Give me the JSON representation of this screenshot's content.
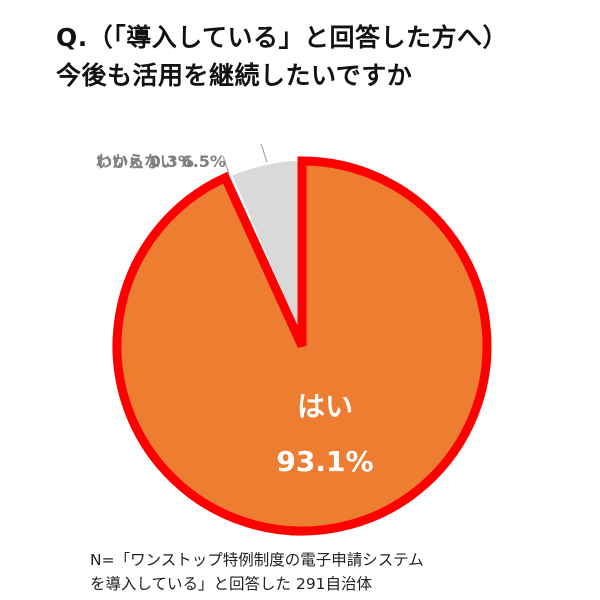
{
  "title": {
    "line1": "Q.（「導入している」と回答した方へ）",
    "line2": "今後も活用を継続したいですか"
  },
  "chart_data": {
    "type": "pie",
    "slices": [
      {
        "label": "はい",
        "value": 93.1,
        "value_label": "93.1%",
        "color": "#ed7d31",
        "highlighted": true,
        "highlight_color": "#ff0000"
      },
      {
        "label": "いいえ",
        "value": 0.3,
        "value_label": "0.3%",
        "color": "#ffffff"
      },
      {
        "label": "わからない",
        "value": 6.5,
        "value_label": "6.5%",
        "color": "#d9d9d9"
      }
    ]
  },
  "footnote": {
    "line1": "N=「ワンストップ特例制度の電子申請システム",
    "line2": "を導入している」と回答した 291自治体"
  }
}
